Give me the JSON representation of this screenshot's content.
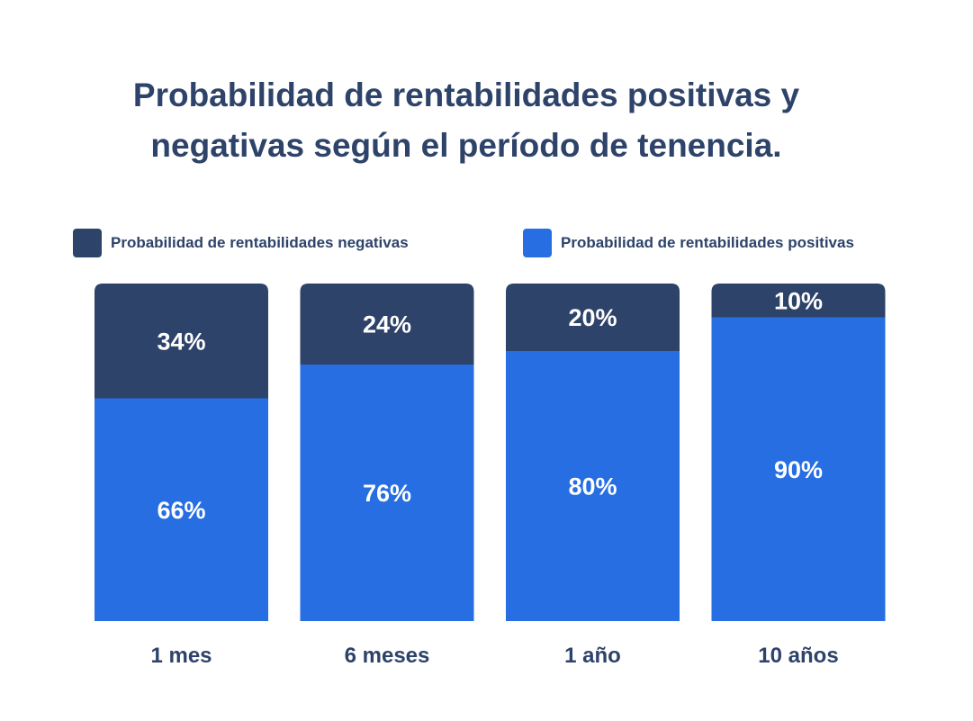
{
  "chart_data": {
    "type": "bar",
    "stacked": true,
    "percent": true,
    "title_lines": [
      "Probabilidad de rentabilidades positivas y",
      "negativas según el período de tenencia."
    ],
    "categories": [
      "1 mes",
      "6 meses",
      "1 año",
      "10 años"
    ],
    "series": [
      {
        "name": "Probabilidad de rentabilidades negativas",
        "values": [
          34,
          24,
          20,
          10
        ],
        "labels": [
          "34%",
          "24%",
          "20%",
          "10%"
        ],
        "color": "#2e4369"
      },
      {
        "name": "Probabilidad de rentabilidades positivas",
        "values": [
          66,
          76,
          80,
          90
        ],
        "labels": [
          "66%",
          "76%",
          "80%",
          "90%"
        ],
        "color": "#266ee2"
      }
    ],
    "ylim": [
      0,
      100
    ],
    "xlabel": "",
    "ylabel": "",
    "grid": false,
    "legend_position": "top"
  }
}
